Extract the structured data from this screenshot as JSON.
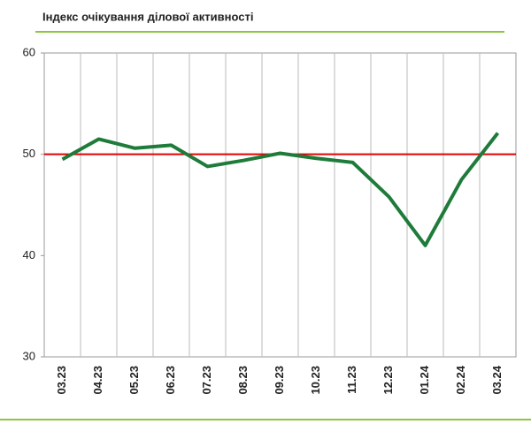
{
  "chart_data": {
    "type": "line",
    "title": "Індекс очікування ділової активності",
    "categories": [
      "03.23",
      "04.23",
      "05.23",
      "06.23",
      "07.23",
      "08.23",
      "09.23",
      "10.23",
      "11.23",
      "12.23",
      "01.24",
      "02.24",
      "03.24"
    ],
    "series": [
      {
        "color": "#1e7b3a",
        "values": [
          49.5,
          51.5,
          50.6,
          50.9,
          48.8,
          49.4,
          50.1,
          49.6,
          49.2,
          45.8,
          41.0,
          47.5,
          52.1
        ]
      }
    ],
    "reference_line": {
      "value": 50,
      "color": "#e00000"
    },
    "ylim": [
      30,
      60
    ],
    "yticks": [
      30,
      40,
      50,
      60
    ]
  }
}
